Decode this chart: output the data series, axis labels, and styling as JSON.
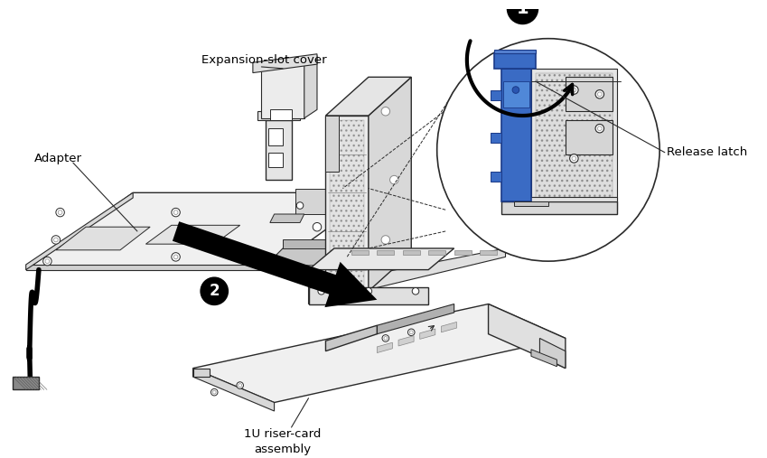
{
  "background_color": "#ffffff",
  "line_color": "#2a2a2a",
  "med_gray": "#888888",
  "light_gray": "#d8d8d8",
  "lighter_gray": "#eeeeee",
  "blue_color": "#3a6bc4",
  "blue_dark": "#1a3a88",
  "black": "#000000",
  "labels": {
    "adapter": "Adapter",
    "expansion_slot_cover": "Expansion-slot cover",
    "release_latch": "Release latch",
    "riser_card": "1U riser-card\nassembly"
  },
  "figsize": [
    8.49,
    5.07
  ],
  "dpi": 100
}
